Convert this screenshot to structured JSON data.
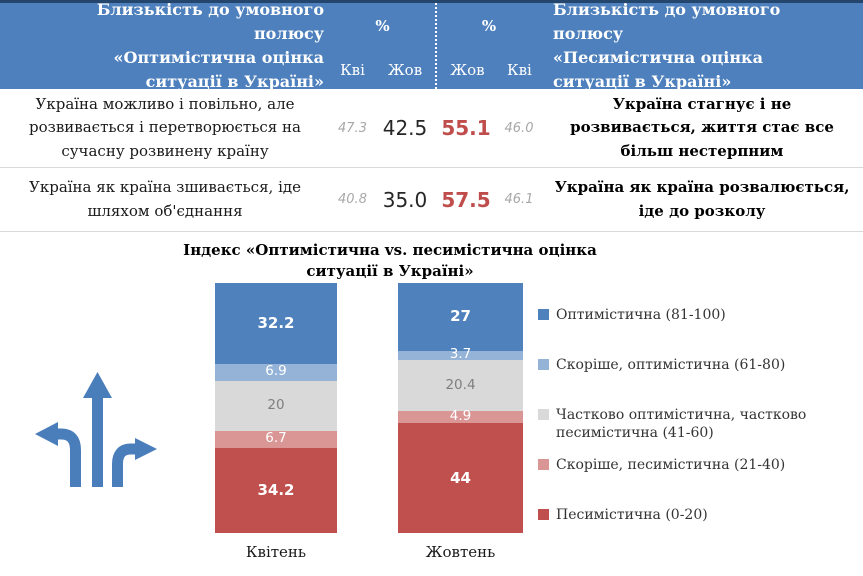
{
  "table": {
    "header": {
      "left_title": "Близькість до умовного полюсу\n«Оптимістична оцінка\nситуації в Україні»",
      "right_title": "Близькість до умовного полюсу\n«Песимістична оцінка\nситуації в Україні»",
      "left_pct": "%",
      "right_pct": "%",
      "left_cols": {
        "c1": "Кві",
        "c2": "Жов"
      },
      "right_cols": {
        "c1": "Жов",
        "c2": "Кві"
      }
    },
    "rows": [
      {
        "left_text": "Україна можливо і повільно, але\nрозвивається і перетворюється на\nсучасну розвинену країну",
        "left_apr": "47.3",
        "left_oct": "42.5",
        "right_oct": "55.1",
        "right_apr": "46.0",
        "right_text": "Україна стагнує і не\nрозвивається, життя стає все\nбільш нестерпним"
      },
      {
        "left_text": "Україна як країна зшивається, іде\nшляхом об'єднання",
        "left_apr": "40.8",
        "left_oct": "35.0",
        "right_oct": "57.5",
        "right_apr": "46.1",
        "right_text": "Україна як країна розвалюється,\nіде до розколу"
      }
    ]
  },
  "chart_data": {
    "type": "bar",
    "stacked": true,
    "title": "Індекс «Оптимістична vs. песимістична оцінка ситуації в Україні»",
    "categories": [
      "Квітень",
      "Жовтень"
    ],
    "series": [
      {
        "name": "Оптимістична (81-100)",
        "color": "#4f81bd",
        "label_color": "#ffffff",
        "label_bold": true,
        "values": [
          32.2,
          27
        ]
      },
      {
        "name": "Скоріше, оптимістична (61-80)",
        "color": "#95b3d7",
        "label_color": "#ffffff",
        "label_bold": false,
        "values": [
          6.9,
          3.7
        ]
      },
      {
        "name": "Частково оптимістична, частково песимістична (41-60)",
        "color": "#d9d9d9",
        "label_color": "#7f7f7f",
        "label_bold": false,
        "values": [
          20,
          20.4
        ]
      },
      {
        "name": "Скоріше, песимістична (21-40)",
        "color": "#d99694",
        "label_color": "#ffffff",
        "label_bold": false,
        "values": [
          6.7,
          4.9
        ]
      },
      {
        "name": "Песимістична (0-20)",
        "color": "#c0504d",
        "label_color": "#ffffff",
        "label_bold": true,
        "values": [
          34.2,
          44
        ]
      }
    ],
    "ylim": [
      0,
      100
    ],
    "grid": false,
    "legend_position": "right"
  },
  "icon": {
    "name": "three-way-direction-arrows",
    "color": "#4a7ebb"
  },
  "colors": {
    "header_bg": "#4e80bd",
    "table_top_border": "#24466d",
    "row_separator": "#d9d9d9",
    "value_gray": "#a8a8a8",
    "value_black": "#262626",
    "value_red": "#bf4d4b"
  }
}
